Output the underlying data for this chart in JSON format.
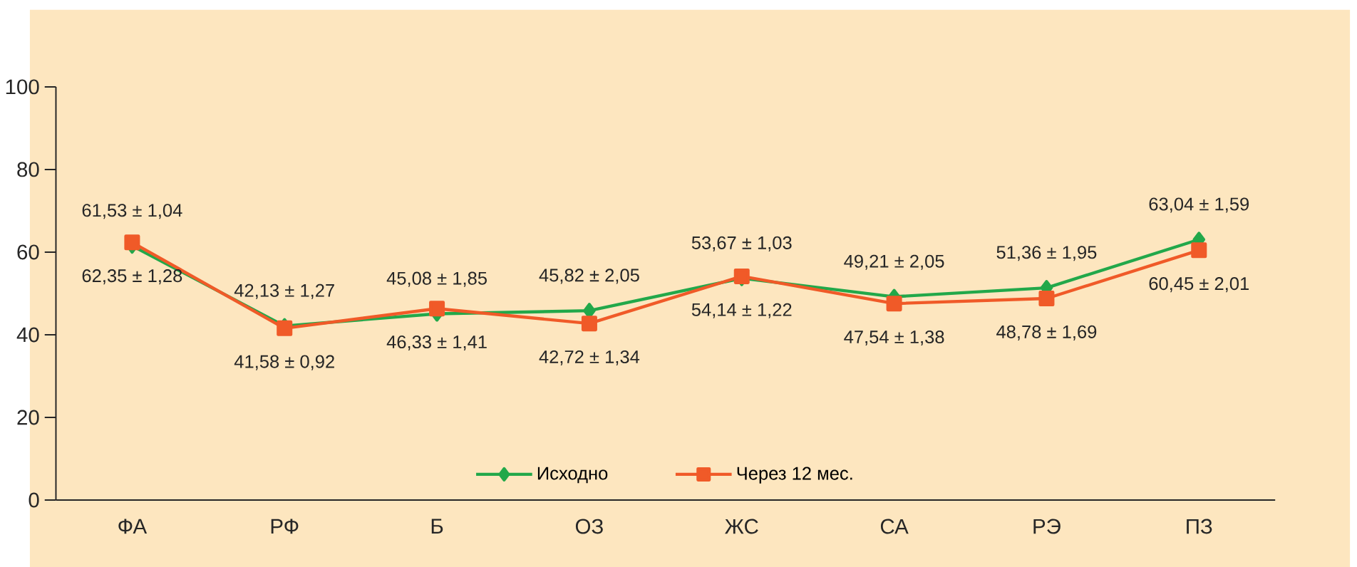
{
  "chart_data": {
    "type": "line",
    "categories": [
      "ФА",
      "РФ",
      "Б",
      "ОЗ",
      "ЖС",
      "СА",
      "РЭ",
      "ПЗ"
    ],
    "series": [
      {
        "name": "Исходно",
        "color": "#22a84a",
        "marker": "diamond",
        "values": [
          61.53,
          42.13,
          45.08,
          45.82,
          53.67,
          49.21,
          51.36,
          63.04
        ],
        "value_labels": [
          "61,53 ± 1,04",
          "42,13 ± 1,27",
          "45,08 ± 1,85",
          "45,82 ± 2,05",
          "53,67 ± 1,03",
          "49,21 ± 2,05",
          "51,36 ± 1,95",
          "63,04 ± 1,59"
        ]
      },
      {
        "name": "Через 12 мес.",
        "color": "#f05a28",
        "marker": "square",
        "values": [
          62.35,
          41.58,
          46.33,
          42.72,
          54.14,
          47.54,
          48.78,
          60.45
        ],
        "value_labels": [
          "62,35 ± 1,28",
          "41,58 ± 0,92",
          "46,33 ± 1,41",
          "42,72 ± 1,34",
          "54,14 ± 1,22",
          "47,54 ± 1,38",
          "48,78 ± 1,69",
          "60,45 ± 2,01"
        ]
      }
    ],
    "ylim": [
      0,
      100
    ],
    "yticks": [
      0,
      20,
      40,
      60,
      80,
      100
    ],
    "grid": false,
    "legend": "bottom",
    "line_style": "solid"
  }
}
